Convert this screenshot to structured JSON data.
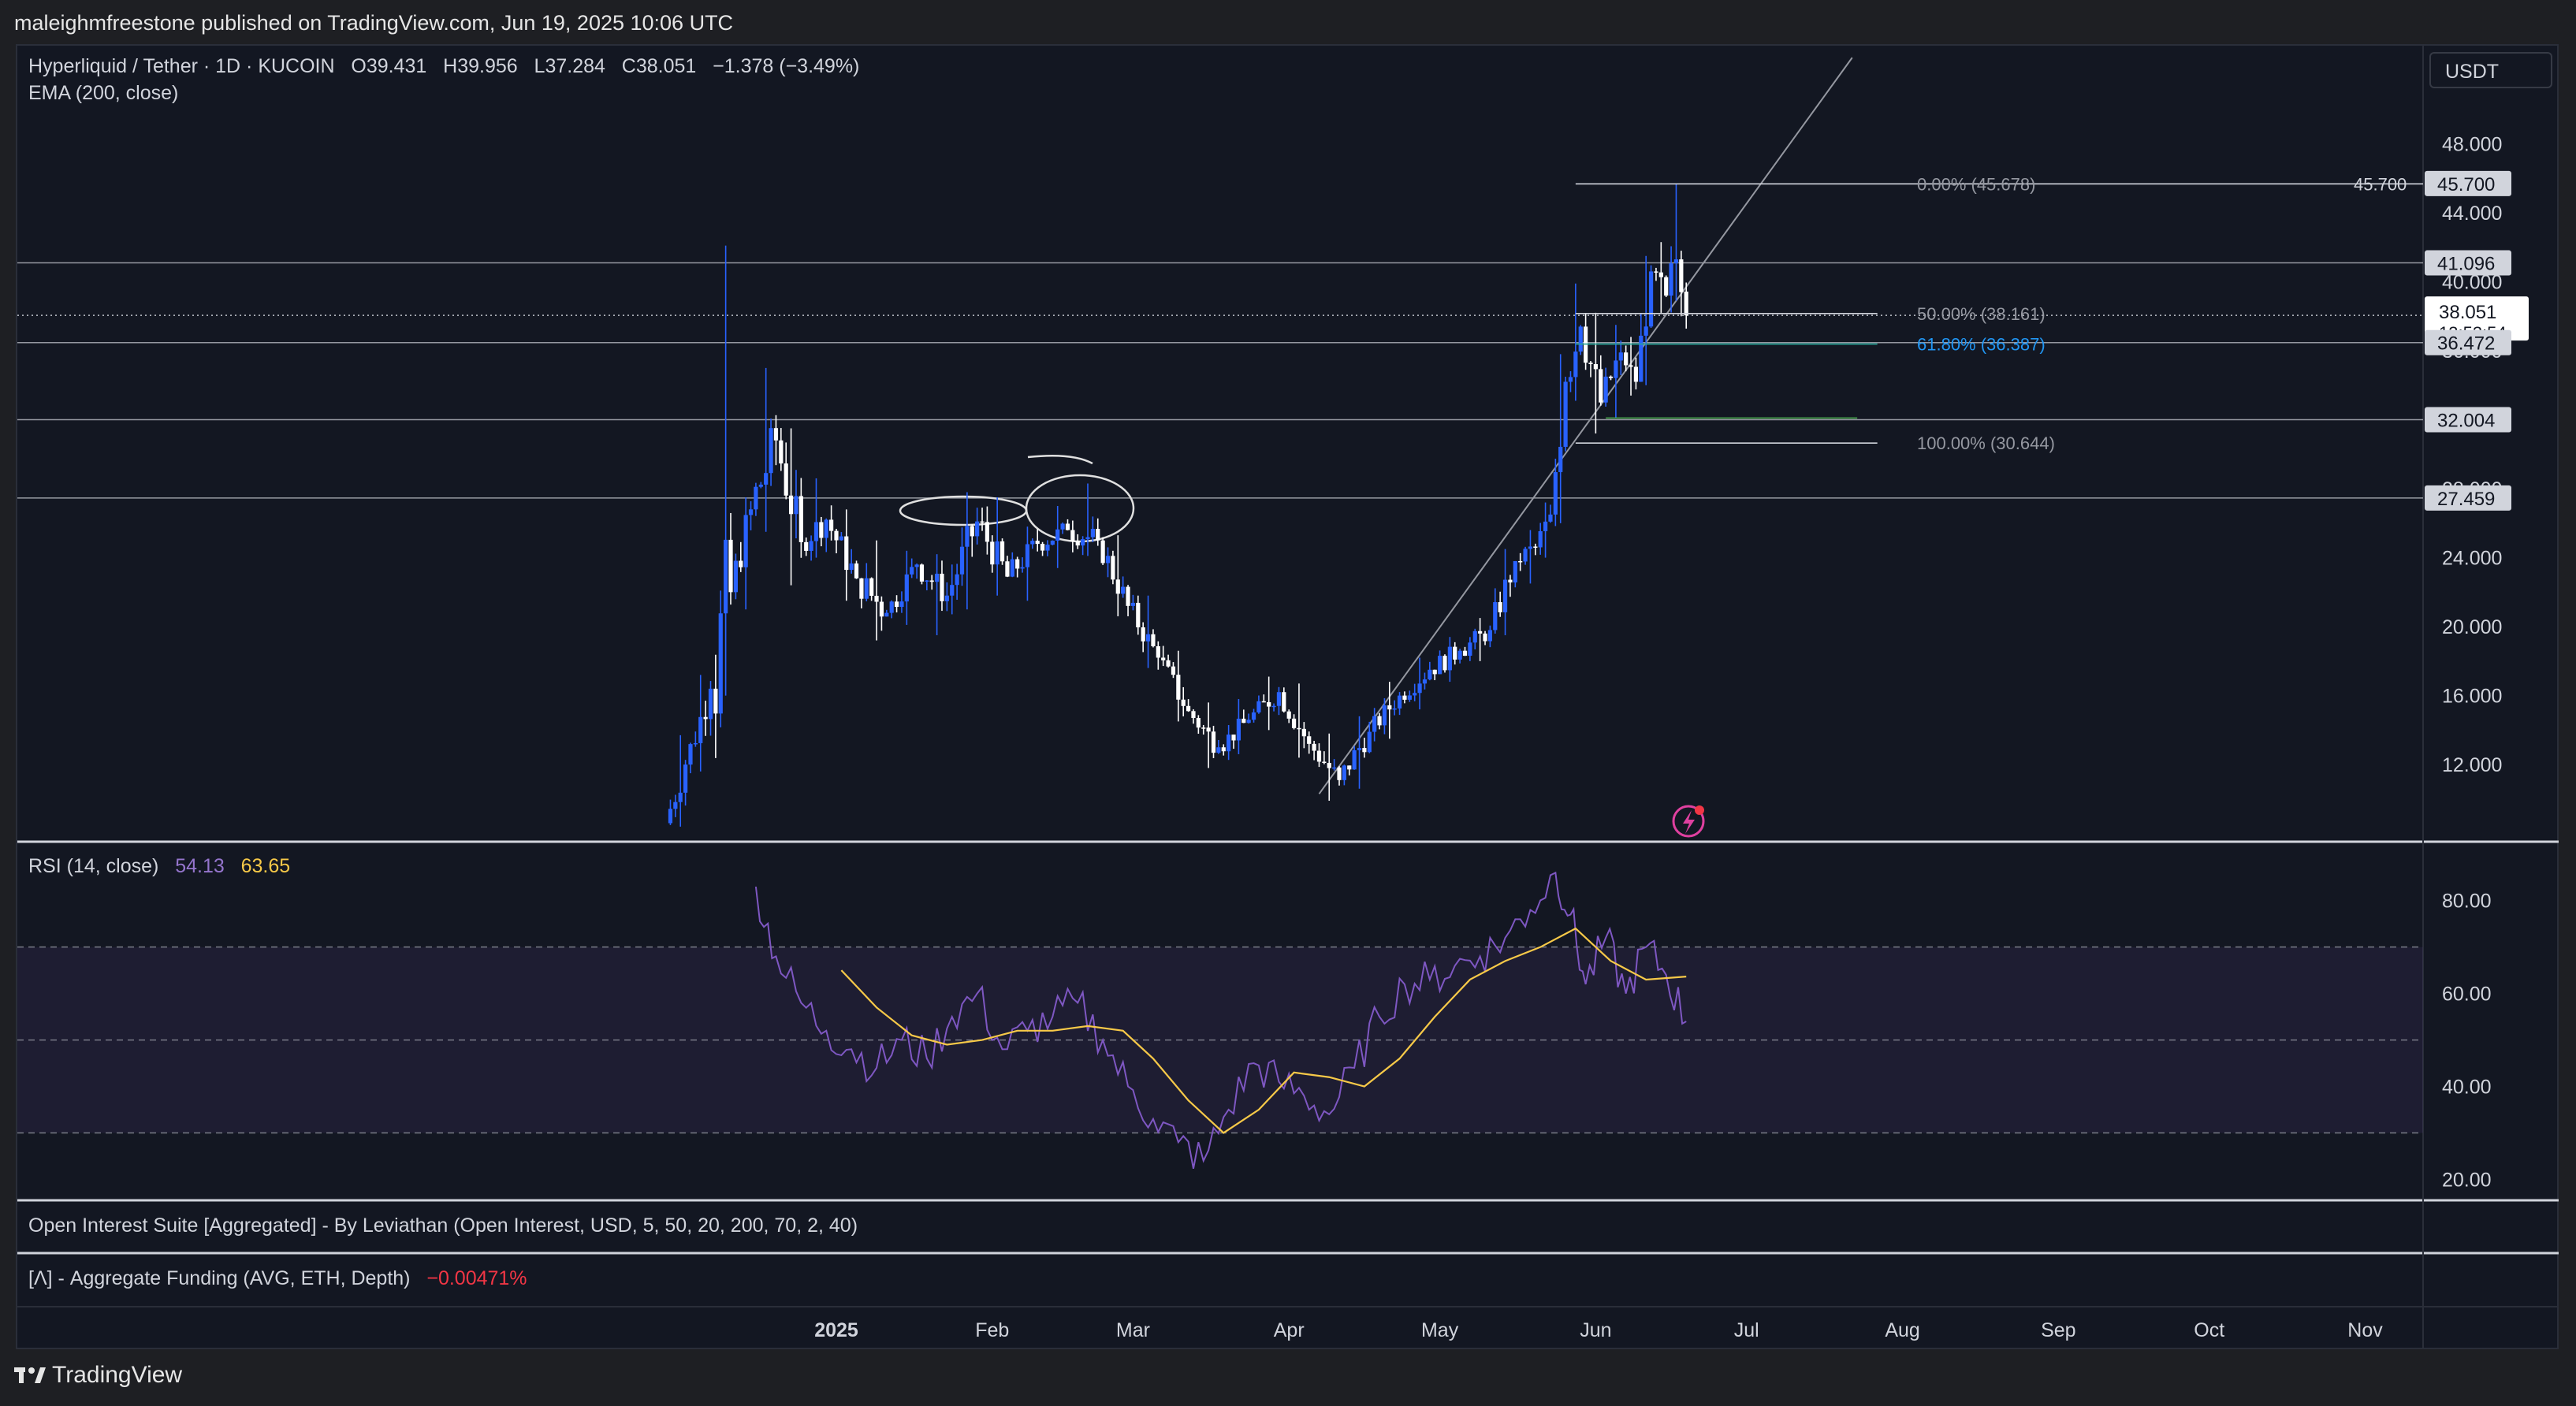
{
  "header": {
    "published_by": "maleighmfreestone published on TradingView.com, Jun 19, 2025 10:06 UTC"
  },
  "footer": {
    "brand": "TradingView"
  },
  "symbol_legend": {
    "title": "Hyperliquid / Tether · 1D · KUCOIN",
    "open_label": "O",
    "open": "39.431",
    "high_label": "H",
    "high": "39.956",
    "low_label": "L",
    "low": "37.284",
    "close_label": "C",
    "close": "38.051",
    "change": "−1.378 (−3.49%)",
    "indicator": "EMA (200, close)"
  },
  "currency_button": "USDT",
  "rsi_legend": {
    "label": "RSI (14, close)",
    "rsi_value": "54.13",
    "ma_value": "63.65"
  },
  "oi_legend": {
    "label": "Open Interest Suite [Aggregated] - By Leviathan (Open Interest, USD, 5, 50, 20, 200, 70, 2, 40)"
  },
  "funding_legend": {
    "label": "[Λ] - Aggregate Funding (AVG, ETH, Depth)",
    "value": "−0.00471%"
  },
  "colors": {
    "background": "#131722",
    "up_candle": "#2962ff",
    "down_candle": "#ffffff",
    "rsi_line": "#7e57c2",
    "rsi_ma": "#f7c948",
    "fib_618": "#2196f3",
    "fib_teal": "#26a69a",
    "funding_negative": "#f23645",
    "rsi_band": "#7e57c2"
  },
  "chart_data": [
    {
      "type": "candlestick",
      "symbol": "Hyperliquid / Tether",
      "interval": "1D",
      "exchange": "KUCOIN",
      "y_axis_ticks": [
        12.0,
        16.0,
        20.0,
        24.0,
        28.0,
        32.0,
        36.0,
        40.0,
        44.0,
        48.0
      ],
      "y_tick_labels": [
        "12.000",
        "16.000",
        "20.000",
        "24.000",
        "28.000",
        "32.000",
        "36.000",
        "40.000",
        "44.000",
        "48.000"
      ],
      "ylim": [
        7.8,
        53.6
      ],
      "x_tick_labels": [
        "2025",
        "Feb",
        "Mar",
        "Apr",
        "May",
        "Jun",
        "Jul",
        "Aug",
        "Sep",
        "Oct",
        "Nov"
      ],
      "price_labels": [
        {
          "value": 45.7,
          "text": "45.700",
          "highlight": true
        },
        {
          "value": 41.096,
          "text": "41.096",
          "highlight": true
        },
        {
          "value": 38.051,
          "text": "38.051",
          "countdown": "13:53:54",
          "current": true
        },
        {
          "value": 36.472,
          "text": "36.472",
          "highlight": true
        },
        {
          "value": 32.004,
          "text": "32.004",
          "highlight": true
        },
        {
          "value": 27.459,
          "text": "27.459",
          "highlight": true
        }
      ],
      "horizontal_lines": [
        41.096,
        36.472,
        32.004,
        27.459
      ],
      "fibonacci": [
        {
          "level": "0.00%",
          "price": 45.678,
          "label": "0.00% (45.678)",
          "right_label": "45.700"
        },
        {
          "level": "50.00%",
          "price": 38.161,
          "label": "50.00% (38.161)"
        },
        {
          "level": "61.80%",
          "price": 36.387,
          "label": "61.80% (36.387)"
        },
        {
          "level": "100.00%",
          "price": 30.644,
          "label": "100.00% (30.644)"
        }
      ],
      "trendline": {
        "from": {
          "date": "2025-04-07",
          "price": 10.3
        },
        "to": {
          "date": "2025-07-22",
          "price": 53.0
        }
      },
      "candles_ohlc_sampled": [
        {
          "date": "2024-11-29",
          "o": 8.6,
          "h": 13.7,
          "l": 8.4,
          "c": 12.0
        },
        {
          "date": "2024-12-03",
          "o": 12.0,
          "h": 17.2,
          "l": 11.6,
          "c": 16.4
        },
        {
          "date": "2024-12-08",
          "o": 16.4,
          "h": 42.1,
          "l": 16.0,
          "c": 22.0
        },
        {
          "date": "2024-12-12",
          "o": 22.0,
          "h": 27.5,
          "l": 21.0,
          "c": 26.8
        },
        {
          "date": "2024-12-16",
          "o": 26.8,
          "h": 35.0,
          "l": 25.5,
          "c": 30.8
        },
        {
          "date": "2024-12-21",
          "o": 30.8,
          "h": 31.5,
          "l": 22.4,
          "c": 24.9
        },
        {
          "date": "2024-12-26",
          "o": 24.9,
          "h": 28.6,
          "l": 24.0,
          "c": 26.2
        },
        {
          "date": "2024-12-31",
          "o": 26.2,
          "h": 26.8,
          "l": 21.5,
          "c": 22.8
        },
        {
          "date": "2025-01-06",
          "o": 22.8,
          "h": 25.0,
          "l": 19.2,
          "c": 20.8
        },
        {
          "date": "2025-01-12",
          "o": 20.8,
          "h": 24.4,
          "l": 20.1,
          "c": 23.6
        },
        {
          "date": "2025-01-18",
          "o": 23.6,
          "h": 24.2,
          "l": 19.5,
          "c": 21.8
        },
        {
          "date": "2025-01-24",
          "o": 21.8,
          "h": 27.8,
          "l": 21.0,
          "c": 26.1
        },
        {
          "date": "2025-01-30",
          "o": 26.1,
          "h": 27.5,
          "l": 21.8,
          "c": 22.9
        },
        {
          "date": "2025-02-05",
          "o": 22.9,
          "h": 25.8,
          "l": 21.5,
          "c": 24.8
        },
        {
          "date": "2025-02-11",
          "o": 24.8,
          "h": 27.0,
          "l": 23.4,
          "c": 25.6
        },
        {
          "date": "2025-02-17",
          "o": 25.6,
          "h": 28.3,
          "l": 24.1,
          "c": 25.0
        },
        {
          "date": "2025-02-23",
          "o": 25.0,
          "h": 25.3,
          "l": 20.6,
          "c": 21.2
        },
        {
          "date": "2025-03-01",
          "o": 21.2,
          "h": 21.8,
          "l": 17.6,
          "c": 18.2
        },
        {
          "date": "2025-03-07",
          "o": 18.2,
          "h": 18.6,
          "l": 14.5,
          "c": 15.1
        },
        {
          "date": "2025-03-13",
          "o": 15.1,
          "h": 15.6,
          "l": 11.8,
          "c": 13.0
        },
        {
          "date": "2025-03-19",
          "o": 13.0,
          "h": 15.8,
          "l": 12.6,
          "c": 14.6
        },
        {
          "date": "2025-03-25",
          "o": 14.6,
          "h": 17.1,
          "l": 14.0,
          "c": 16.2
        },
        {
          "date": "2025-03-31",
          "o": 16.2,
          "h": 16.7,
          "l": 12.4,
          "c": 13.2
        },
        {
          "date": "2025-04-06",
          "o": 13.2,
          "h": 13.8,
          "l": 9.9,
          "c": 11.1
        },
        {
          "date": "2025-04-12",
          "o": 11.1,
          "h": 14.8,
          "l": 10.6,
          "c": 13.9
        },
        {
          "date": "2025-04-18",
          "o": 13.9,
          "h": 16.8,
          "l": 13.5,
          "c": 16.0
        },
        {
          "date": "2025-04-24",
          "o": 16.0,
          "h": 18.2,
          "l": 15.2,
          "c": 17.5
        },
        {
          "date": "2025-04-30",
          "o": 17.5,
          "h": 19.4,
          "l": 16.8,
          "c": 18.6
        },
        {
          "date": "2025-05-06",
          "o": 18.6,
          "h": 20.5,
          "l": 18.0,
          "c": 19.8
        },
        {
          "date": "2025-05-12",
          "o": 19.8,
          "h": 24.5,
          "l": 19.5,
          "c": 23.8
        },
        {
          "date": "2025-05-17",
          "o": 23.8,
          "h": 25.6,
          "l": 22.5,
          "c": 24.6
        },
        {
          "date": "2025-05-21",
          "o": 24.6,
          "h": 27.2,
          "l": 24.0,
          "c": 26.5
        },
        {
          "date": "2025-05-24",
          "o": 26.5,
          "h": 35.8,
          "l": 26.0,
          "c": 34.2
        },
        {
          "date": "2025-05-27",
          "o": 34.2,
          "h": 39.9,
          "l": 33.1,
          "c": 37.4
        },
        {
          "date": "2025-05-30",
          "o": 37.4,
          "h": 38.2,
          "l": 31.2,
          "c": 33.0
        },
        {
          "date": "2025-06-03",
          "o": 33.0,
          "h": 37.5,
          "l": 32.1,
          "c": 35.9
        },
        {
          "date": "2025-06-07",
          "o": 35.9,
          "h": 36.8,
          "l": 33.4,
          "c": 34.2
        },
        {
          "date": "2025-06-10",
          "o": 34.2,
          "h": 41.5,
          "l": 34.0,
          "c": 40.6
        },
        {
          "date": "2025-06-13",
          "o": 40.6,
          "h": 42.3,
          "l": 38.2,
          "c": 39.2
        },
        {
          "date": "2025-06-16",
          "o": 39.2,
          "h": 45.7,
          "l": 38.9,
          "c": 41.3
        },
        {
          "date": "2025-06-18",
          "o": 41.3,
          "h": 41.8,
          "l": 38.0,
          "c": 39.4
        },
        {
          "date": "2025-06-19",
          "o": 39.431,
          "h": 39.956,
          "l": 37.284,
          "c": 38.051
        }
      ]
    },
    {
      "type": "line",
      "title": "RSI (14, close)",
      "ylim": [
        16,
        92
      ],
      "y_axis_ticks": [
        20,
        40,
        60,
        80
      ],
      "y_tick_labels": [
        "20.00",
        "40.00",
        "60.00",
        "80.00"
      ],
      "bands": {
        "upper": 70,
        "middle": 50,
        "lower": 30
      },
      "series": [
        {
          "name": "RSI",
          "dates": [
            "2024-12-16",
            "2024-12-20",
            "2024-12-25",
            "2024-12-30",
            "2025-01-04",
            "2025-01-09",
            "2025-01-14",
            "2025-01-19",
            "2025-01-24",
            "2025-01-29",
            "2025-02-03",
            "2025-02-08",
            "2025-02-13",
            "2025-02-18",
            "2025-02-23",
            "2025-02-28",
            "2025-03-05",
            "2025-03-10",
            "2025-03-15",
            "2025-03-20",
            "2025-03-25",
            "2025-03-30",
            "2025-04-04",
            "2025-04-09",
            "2025-04-14",
            "2025-04-19",
            "2025-04-24",
            "2025-04-29",
            "2025-05-04",
            "2025-05-09",
            "2025-05-14",
            "2025-05-19",
            "2025-05-24",
            "2025-05-27",
            "2025-05-30",
            "2025-06-03",
            "2025-06-07",
            "2025-06-11",
            "2025-06-15",
            "2025-06-19"
          ],
          "values": [
            83,
            68,
            58,
            52,
            48,
            44,
            50,
            46,
            55,
            60,
            48,
            52,
            55,
            58,
            50,
            40,
            33,
            28,
            24,
            35,
            45,
            41,
            38,
            34,
            44,
            55,
            62,
            63,
            66,
            68,
            72,
            78,
            86,
            77,
            62,
            72,
            60,
            70,
            64,
            54
          ]
        },
        {
          "name": "RSI-based MA",
          "dates": [
            "2025-01-02",
            "2025-01-09",
            "2025-01-16",
            "2025-01-23",
            "2025-01-30",
            "2025-02-06",
            "2025-02-13",
            "2025-02-20",
            "2025-02-27",
            "2025-03-05",
            "2025-03-12",
            "2025-03-19",
            "2025-03-26",
            "2025-04-02",
            "2025-04-09",
            "2025-04-16",
            "2025-04-23",
            "2025-04-30",
            "2025-05-07",
            "2025-05-14",
            "2025-05-21",
            "2025-05-28",
            "2025-06-04",
            "2025-06-11",
            "2025-06-19"
          ],
          "values": [
            65,
            57,
            51,
            49,
            50,
            52,
            52,
            53,
            52,
            46,
            37,
            30,
            35,
            43,
            42,
            40,
            46,
            55,
            63,
            67,
            70,
            74,
            67,
            63,
            63.65
          ]
        }
      ]
    }
  ]
}
